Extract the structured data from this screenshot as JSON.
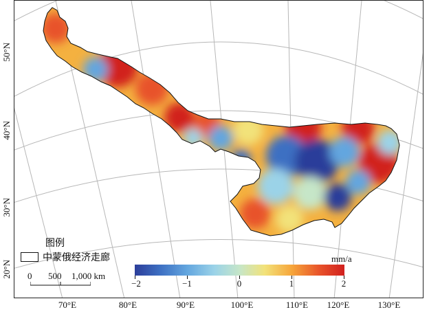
{
  "map": {
    "lat_labels": [
      "50°N",
      "40°N",
      "30°N",
      "20°N"
    ],
    "lon_labels": [
      "70°E",
      "80°E",
      "90°E",
      "100°E",
      "110°E",
      "120°E",
      "130°E"
    ]
  },
  "legend": {
    "title": "图例",
    "item_label": "中蒙俄经济走廊"
  },
  "scale": {
    "labels": [
      "0",
      "500",
      "1,000 km"
    ]
  },
  "colorbar": {
    "unit": "mm/a",
    "tick_labels": [
      "−2",
      "−1",
      "0",
      "1",
      "2"
    ],
    "colors": [
      "#2c3e9a",
      "#63a6df",
      "#c6e6c8",
      "#f2e27a",
      "#f6a53a",
      "#d1201e"
    ]
  }
}
